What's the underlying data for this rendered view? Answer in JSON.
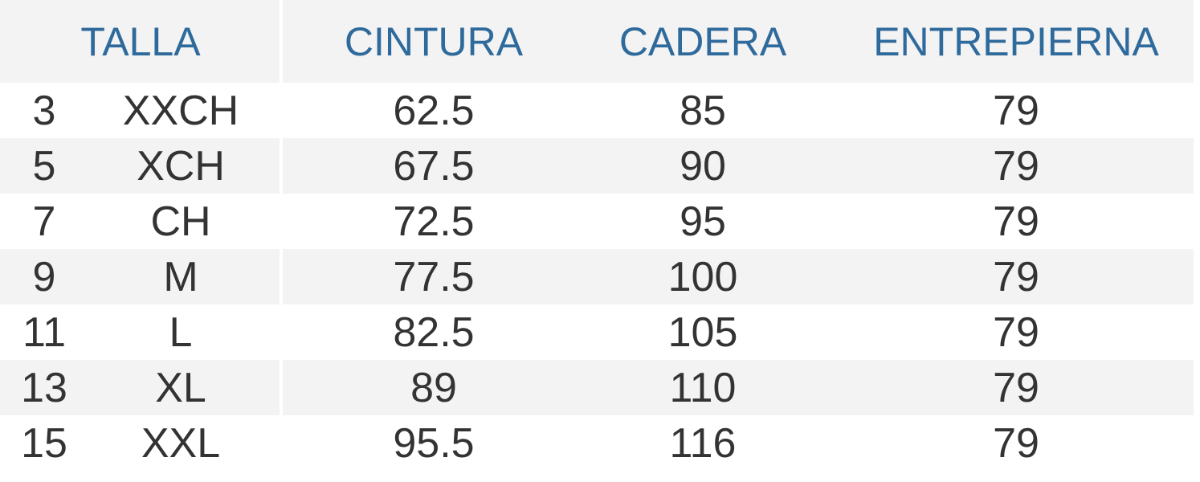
{
  "table": {
    "headers": [
      "TALLA",
      "CINTURA",
      "CADERA",
      "ENTREPIERNA"
    ],
    "rows": [
      [
        3,
        "XXCH",
        62.5,
        85,
        79
      ],
      [
        5,
        "XCH",
        67.5,
        90,
        79
      ],
      [
        7,
        "CH",
        72.5,
        95,
        79
      ],
      [
        9,
        "M",
        77.5,
        100,
        79
      ],
      [
        11,
        "L",
        82.5,
        105,
        79
      ],
      [
        13,
        "XL",
        89,
        110,
        79
      ],
      [
        15,
        "XXL",
        95.5,
        116,
        79
      ]
    ]
  }
}
